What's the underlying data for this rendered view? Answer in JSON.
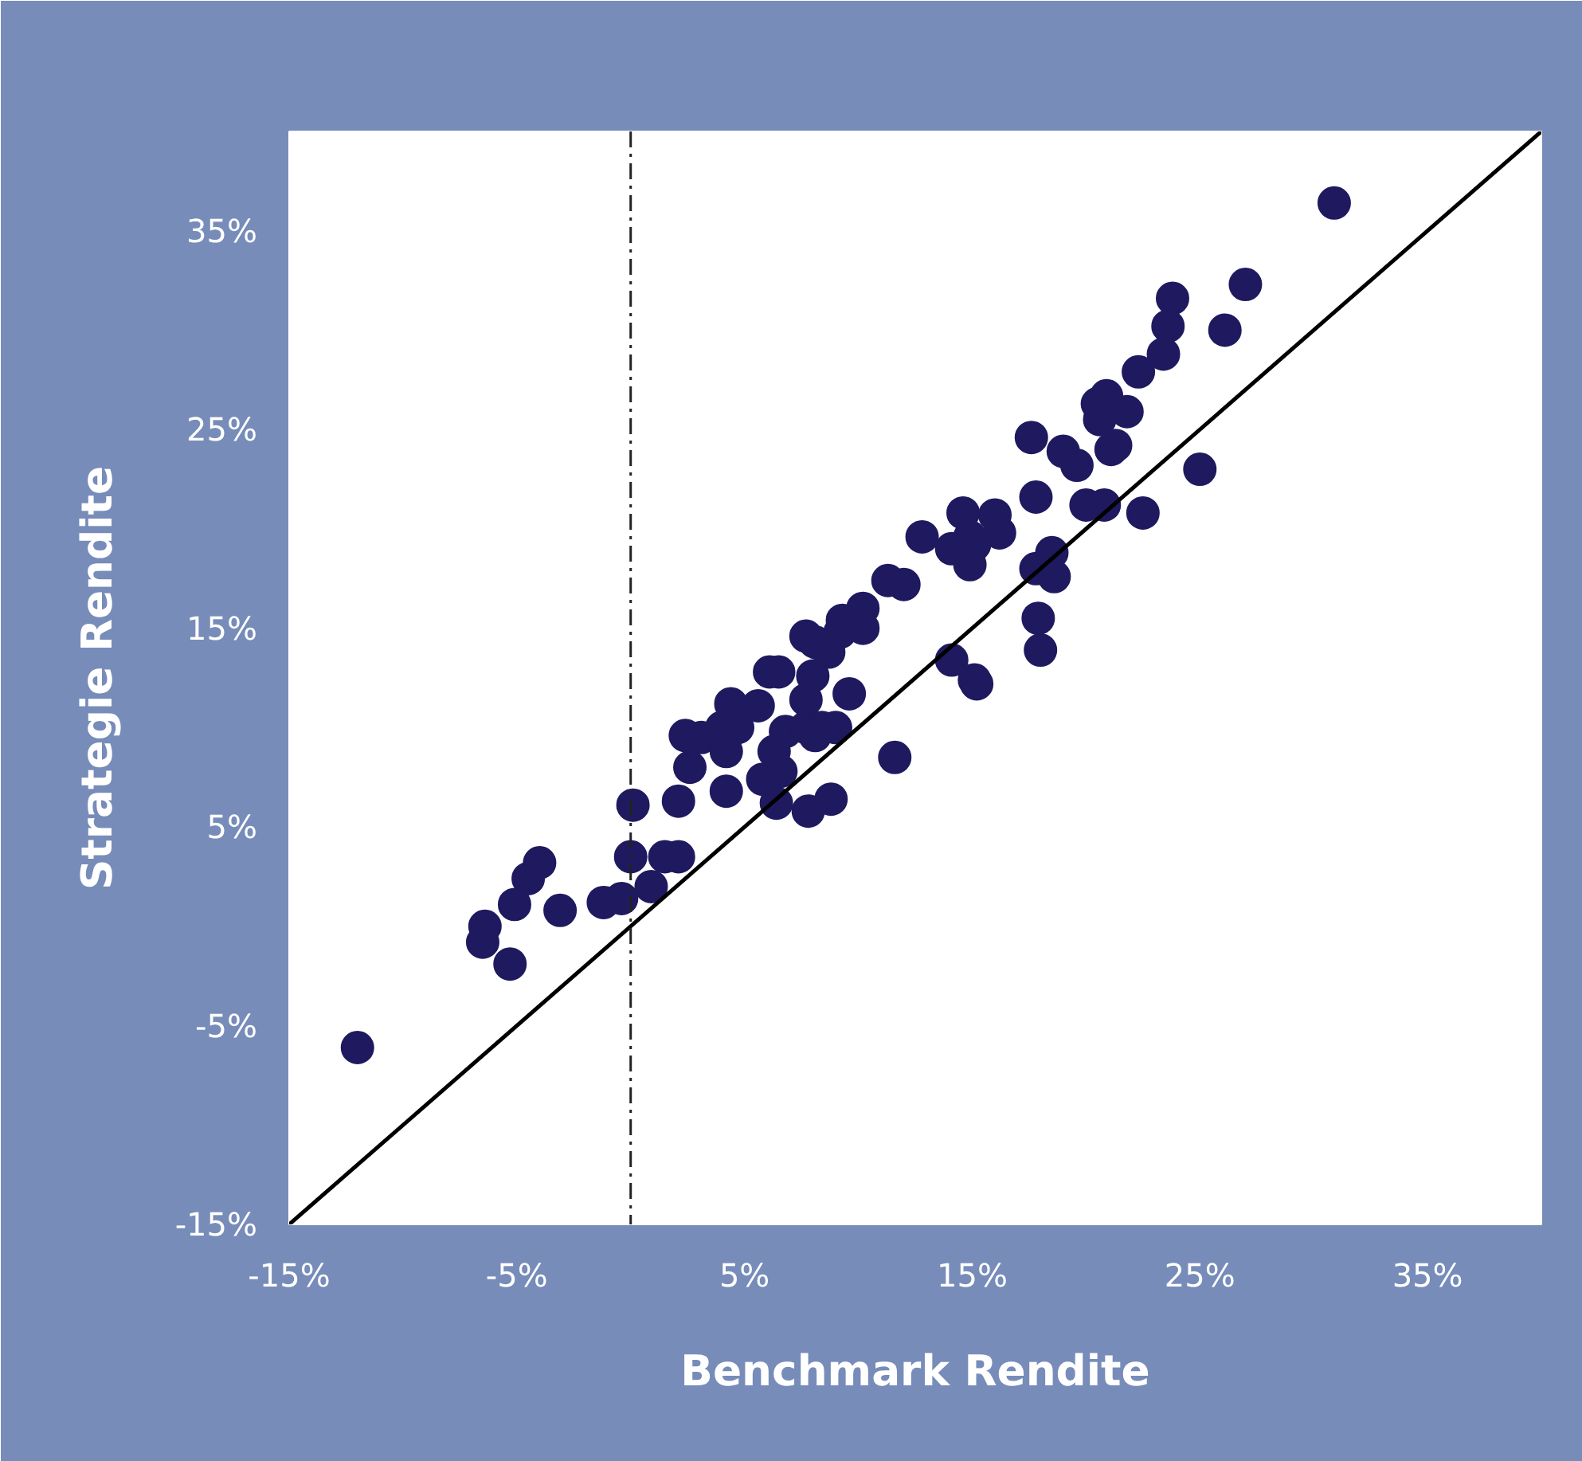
{
  "chart_data": {
    "type": "scatter",
    "xlabel": "Benchmark Rendite",
    "ylabel": "Strategie Rendite",
    "xlim": [
      -15,
      40
    ],
    "ylim": [
      -15,
      40
    ],
    "xticks": [
      {
        "value": -15,
        "label": "-15%"
      },
      {
        "value": -5,
        "label": "-5%"
      },
      {
        "value": 5,
        "label": "5%"
      },
      {
        "value": 15,
        "label": "15%"
      },
      {
        "value": 25,
        "label": "25%"
      },
      {
        "value": 35,
        "label": "35%"
      }
    ],
    "yticks": [
      {
        "value": -15,
        "label": "-15%"
      },
      {
        "value": -5,
        "label": "-5%"
      },
      {
        "value": 5,
        "label": "5%"
      },
      {
        "value": 15,
        "label": "15%"
      },
      {
        "value": 25,
        "label": "25%"
      },
      {
        "value": 35,
        "label": "35%"
      }
    ],
    "grid": false,
    "marker": "circle",
    "ref_lines": [
      {
        "axis": "x",
        "value": 0,
        "label": null,
        "color": "#222222",
        "line_style": "dashed"
      }
    ],
    "series": [
      {
        "color": "#1f1a5f",
        "x": [
          -12.0,
          -6.5,
          -6.4,
          -5.3,
          -5.1,
          -4.5,
          -4.0,
          -3.1,
          -1.2,
          -0.4,
          0.0,
          0.1,
          0.9,
          1.5,
          2.1,
          2.1,
          2.4,
          2.6,
          4.2,
          3.1,
          4.0,
          4.2,
          4.4,
          4.7,
          5.6,
          5.8,
          6.4,
          6.6,
          6.1,
          6.5,
          6.3,
          6.8,
          7.7,
          7.8,
          7.7,
          7.7,
          8.0,
          8.1,
          8.4,
          8.1,
          8.7,
          8.8,
          9.0,
          9.2,
          9.3,
          9.6,
          10.2,
          10.2,
          11.3,
          12.0,
          11.6,
          12.8,
          14.1,
          14.1,
          14.6,
          14.9,
          14.9,
          15.1,
          15.2,
          15.1,
          16.0,
          16.2,
          17.6,
          17.8,
          17.8,
          17.9,
          18.0,
          18.5,
          18.6,
          19.0,
          19.6,
          20.0,
          20.5,
          20.6,
          20.8,
          20.9,
          21.1,
          21.3,
          21.8,
          22.3,
          22.5,
          23.4,
          23.6,
          23.8,
          25.0,
          26.1,
          27.0,
          30.9
        ],
        "values": [
          -6.1,
          -0.8,
          0.0,
          -1.9,
          1.1,
          2.4,
          3.2,
          0.8,
          1.2,
          1.4,
          3.5,
          6.1,
          2.0,
          3.5,
          3.5,
          6.3,
          9.6,
          8.0,
          6.8,
          9.5,
          10.0,
          8.8,
          11.2,
          10.0,
          11.1,
          7.4,
          6.2,
          7.8,
          12.8,
          12.8,
          8.8,
          9.8,
          10.0,
          5.8,
          14.6,
          11.4,
          12.6,
          14.3,
          10.0,
          9.6,
          13.8,
          6.4,
          10.0,
          14.8,
          15.4,
          11.7,
          16.0,
          15.0,
          17.4,
          17.2,
          8.5,
          19.6,
          13.4,
          19.0,
          20.8,
          19.6,
          18.2,
          12.4,
          12.2,
          19.2,
          20.7,
          19.8,
          24.6,
          21.6,
          18.0,
          15.5,
          13.9,
          18.8,
          17.6,
          23.9,
          23.2,
          21.2,
          26.3,
          25.5,
          21.2,
          26.7,
          24.0,
          24.2,
          25.9,
          27.9,
          20.8,
          28.8,
          30.2,
          31.6,
          23.0,
          30.0,
          32.3,
          36.4
        ]
      },
      {
        "type": "line",
        "color": "#000000",
        "x": [
          -15,
          40
        ],
        "values": [
          -15,
          40
        ],
        "marker": "none",
        "line_style": "solid"
      }
    ]
  }
}
